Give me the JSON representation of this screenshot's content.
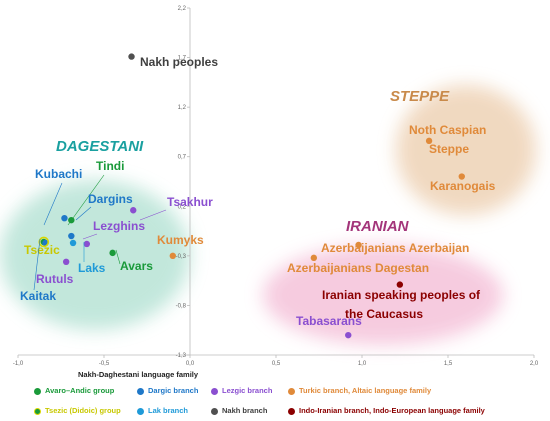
{
  "chart_data": {
    "type": "scatter",
    "xlim": [
      -1.0,
      2.0
    ],
    "ylim": [
      -1.3,
      2.2
    ],
    "x_ticks": [
      "-1,0",
      "-0,5",
      "0,0",
      "0,5",
      "1,0",
      "1,5",
      "2,0"
    ],
    "y_ticks": [
      "2,2",
      "1,7",
      "1,2",
      "0,7",
      "0,2",
      "-0,3",
      "-0,8",
      "-1,3"
    ],
    "grid": false,
    "regions": [
      {
        "name": "DAGESTANI",
        "color": "#1aa0a0",
        "fill": "#bfe6da"
      },
      {
        "name": "STEPPE",
        "color": "#c98a4a",
        "fill": "#f0d7bd"
      },
      {
        "name": "IRANIAN",
        "color": "#a3357a",
        "fill": "#f6c9de"
      }
    ],
    "points": [
      {
        "name": "Nakh peoples",
        "x": -0.34,
        "y": 1.71,
        "color": "#505050",
        "label_color": "#404040"
      },
      {
        "name": "Kubachi",
        "x": -0.73,
        "y": 0.08,
        "color": "#1f78c8",
        "label_color": "#1f78c8"
      },
      {
        "name": "Tindi",
        "x": -0.69,
        "y": 0.06,
        "color": "#1a9a3a",
        "label_color": "#1a9a3a"
      },
      {
        "name": "Dargins",
        "x": -0.69,
        "y": -0.1,
        "color": "#1f78c8",
        "label_color": "#1f78c8"
      },
      {
        "name": "Tsakhur",
        "x": -0.33,
        "y": 0.16,
        "color": "#8a4fd0",
        "label_color": "#8a4fd0"
      },
      {
        "name": "Lezghins",
        "x": -0.6,
        "y": -0.18,
        "color": "#8a4fd0",
        "label_color": "#8a4fd0"
      },
      {
        "name": "Tsezic",
        "x": -0.85,
        "y": -0.16,
        "color": "#1a9a3a",
        "label_color": "#c8c800"
      },
      {
        "name": "Kumyks",
        "x": -0.1,
        "y": -0.3,
        "color": "#e08a3a",
        "label_color": "#e08a3a"
      },
      {
        "name": "Avars",
        "x": -0.45,
        "y": -0.27,
        "color": "#1a9a3a",
        "label_color": "#1a9a3a"
      },
      {
        "name": "Laks",
        "x": -0.68,
        "y": -0.17,
        "color": "#1f9ad8",
        "label_color": "#1f9ad8"
      },
      {
        "name": "Rutuls",
        "x": -0.72,
        "y": -0.36,
        "color": "#8a4fd0",
        "label_color": "#8a4fd0"
      },
      {
        "name": "Kaitak",
        "x": -0.84,
        "y": -0.17,
        "color": "#1f78c8",
        "label_color": "#1f78c8"
      },
      {
        "name": "Noth Caspian Steppe",
        "x": 1.39,
        "y": 0.86,
        "color": "#e08a3a",
        "label_color": "#e08a3a"
      },
      {
        "name": "Karanogais",
        "x": 1.58,
        "y": 0.5,
        "color": "#e08a3a",
        "label_color": "#e08a3a"
      },
      {
        "name": "Azerbaijanians Azerbaijan",
        "x": 0.98,
        "y": -0.19,
        "color": "#e08a3a",
        "label_color": "#e08a3a"
      },
      {
        "name": "Azerbaijanians Dagestan",
        "x": 0.72,
        "y": -0.32,
        "color": "#e08a3a",
        "label_color": "#e08a3a"
      },
      {
        "name": "Iranian speaking peoples of the Caucasus",
        "x": 1.22,
        "y": -0.59,
        "color": "#8b0000",
        "label_color": "#8b0000"
      },
      {
        "name": "Tabasarans",
        "x": 0.92,
        "y": -1.1,
        "color": "#8a4fd0",
        "label_color": "#8a4fd0"
      }
    ],
    "legend": {
      "title": "Nakh-Daghestani language family",
      "items": [
        {
          "label": "Avaro–Andic group",
          "color": "#1a9a3a",
          "text_color": "#1a9a3a"
        },
        {
          "label": "Dargic branch",
          "color": "#1f78c8",
          "text_color": "#1f78c8"
        },
        {
          "label": "Lezgic branch",
          "color": "#8a4fd0",
          "text_color": "#8a4fd0"
        },
        {
          "label": "Turkic  branch, Altaic language family",
          "color": "#e08a3a",
          "text_color": "#e08a3a"
        },
        {
          "label": "Tsezic (Didoic) group",
          "color": "#1a9a3a",
          "text_color": "#c8c800"
        },
        {
          "label": "Lak branch",
          "color": "#1f9ad8",
          "text_color": "#1f9ad8"
        },
        {
          "label": "Nakh branch",
          "color": "#505050",
          "text_color": "#404040"
        },
        {
          "label": "Indo-Iranian branch, Indo-European language family",
          "color": "#8b0000",
          "text_color": "#8b0000"
        }
      ]
    }
  }
}
